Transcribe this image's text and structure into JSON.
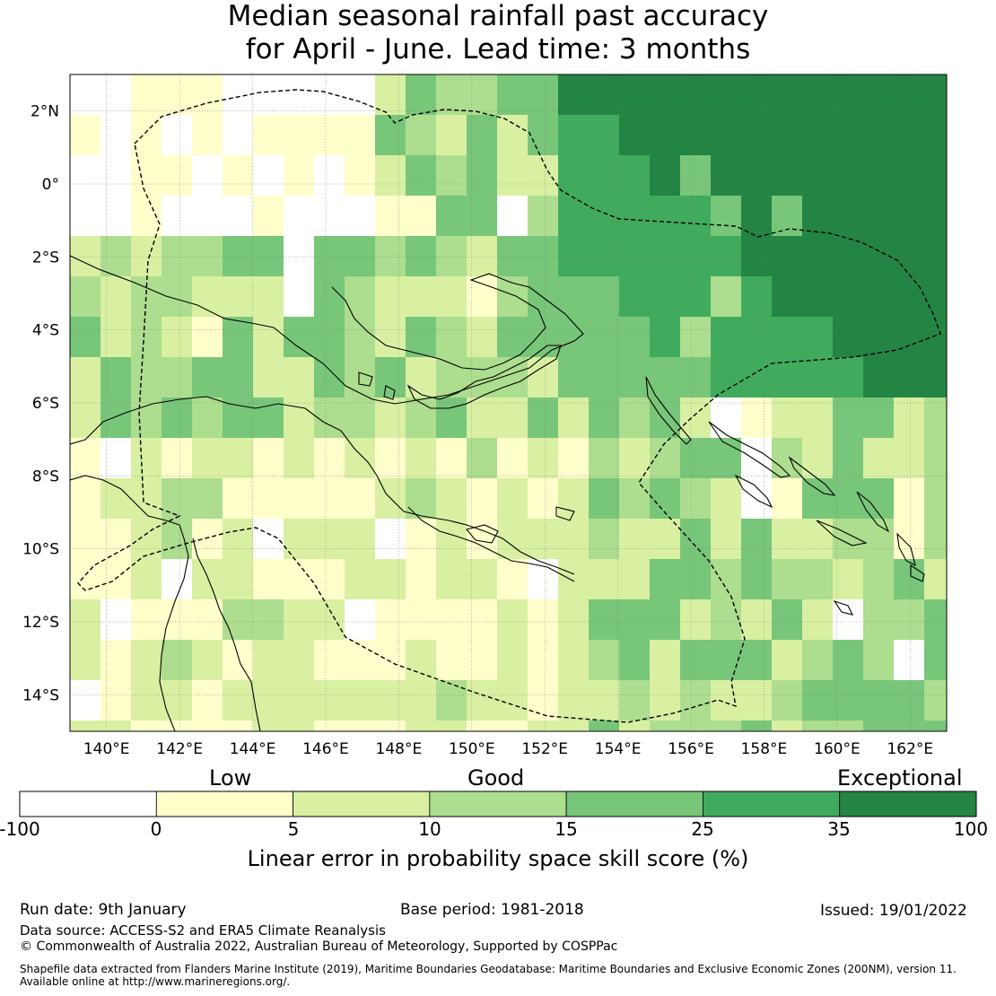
{
  "title": {
    "line1": "Median seasonal rainfall past accuracy",
    "line2": "for April - June. Lead time: 3 months"
  },
  "map": {
    "lon_range": [
      139,
      163
    ],
    "lat_range": [
      -15,
      3
    ],
    "lon_labels": [
      "140°E",
      "142°E",
      "144°E",
      "146°E",
      "148°E",
      "150°E",
      "152°E",
      "154°E",
      "156°E",
      "158°E",
      "160°E",
      "162°E"
    ],
    "lon_values": [
      140,
      142,
      144,
      146,
      148,
      150,
      152,
      154,
      156,
      158,
      160,
      162
    ],
    "lat_labels": [
      "2°N",
      "0°",
      "2°S",
      "4°S",
      "6°S",
      "8°S",
      "10°S",
      "12°S",
      "14°S"
    ],
    "lat_values": [
      2,
      0,
      -2,
      -4,
      -6,
      -8,
      -10,
      -12,
      -14
    ]
  },
  "legend": {
    "categories": [
      {
        "label": "Low",
        "center": 0
      },
      {
        "label": "Good",
        "center": 10
      },
      {
        "label": "Exceptional",
        "center": 35
      }
    ],
    "bins": [
      {
        "from": -100,
        "to": 0,
        "color": "#ffffff"
      },
      {
        "from": 0,
        "to": 5,
        "color": "#ffffcc"
      },
      {
        "from": 5,
        "to": 10,
        "color": "#d9f0a3"
      },
      {
        "from": 10,
        "to": 15,
        "color": "#addd8e"
      },
      {
        "from": 15,
        "to": 25,
        "color": "#78c679"
      },
      {
        "from": 25,
        "to": 35,
        "color": "#41ab5d"
      },
      {
        "from": 35,
        "to": 100,
        "color": "#238443"
      }
    ],
    "tick_labels": [
      "-100",
      "0",
      "5",
      "10",
      "15",
      "25",
      "35",
      "100"
    ],
    "axis_label": "Linear error in probability space skill score (%)"
  },
  "footer": {
    "run_date": "Run date: 9th January",
    "base_period": "Base period: 1981-2018",
    "issued": "Issued: 19/01/2022",
    "data_source": "Data source: ACCESS-S2 and ERA5 Climate Reanalysis",
    "copyright": "© Commonwealth of Australia 2022, Australian Bureau of Meteorology, Supported by COSPPac",
    "shapefile_line1": "Shapefile data extracted from Flanders Marine Institute (2019), Maritime Boundaries Geodatabase: Maritime Boundaries and Exclusive Economic Zones (200NM), version 11.",
    "shapefile_line2": "Available online at http://www.marineregions.org/."
  }
}
